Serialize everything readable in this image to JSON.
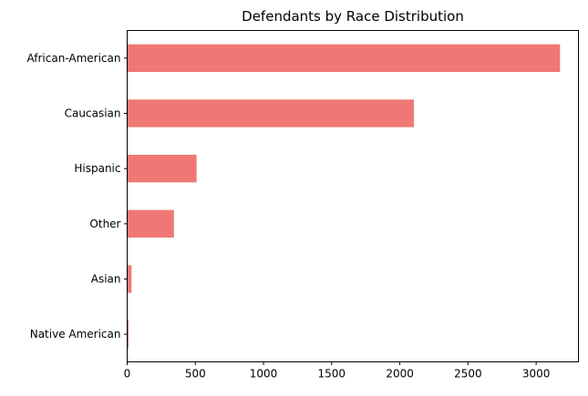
{
  "chart_data": {
    "type": "bar",
    "orientation": "horizontal",
    "title": "Defendants by Race Distribution",
    "xlabel": "",
    "ylabel": "",
    "categories": [
      "Native American",
      "Asian",
      "Other",
      "Hispanic",
      "Caucasian",
      "African-American"
    ],
    "values": [
      11,
      32,
      343,
      509,
      2103,
      3175
    ],
    "xlim": [
      0,
      3310
    ],
    "xticks": [
      0,
      500,
      1000,
      1500,
      2000,
      2500,
      3000
    ],
    "xtick_labels": [
      "0",
      "500",
      "1000",
      "1500",
      "2000",
      "2500",
      "3000"
    ],
    "grid": false,
    "legend": "none",
    "bar_color": "#f07874"
  }
}
